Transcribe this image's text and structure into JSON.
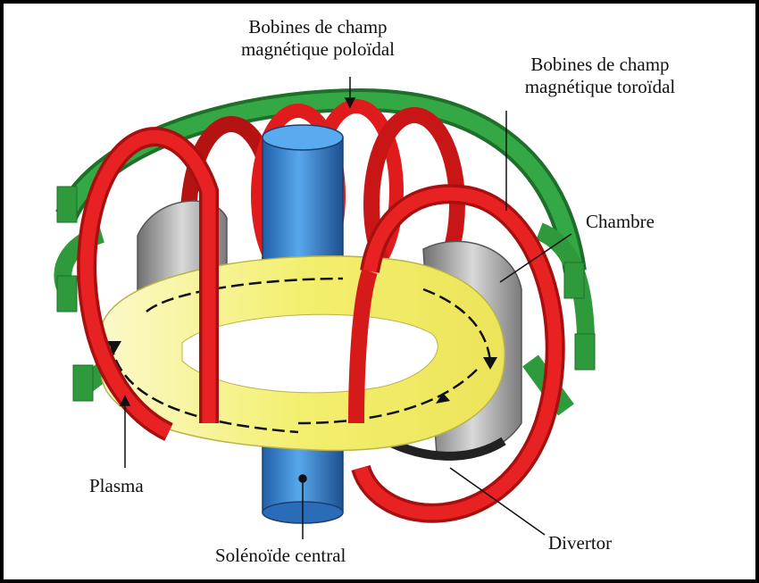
{
  "labels": {
    "poloidal": [
      "Bobines de champ",
      "magnétique poloïdal"
    ],
    "toroidal": [
      "Bobines de champ",
      "magnétique toroïdal"
    ],
    "chambre": "Chambre",
    "plasma": "Plasma",
    "solenoide": "Solénoïde central",
    "divertor": "Divertor"
  },
  "colors": {
    "poloidal_coil": "#2e9a3c",
    "toroidal_coil": "#e01b1b",
    "plasma": "#f3ef7a",
    "solenoid": "#3f8fd6",
    "chamber": "#b8b8b8"
  }
}
